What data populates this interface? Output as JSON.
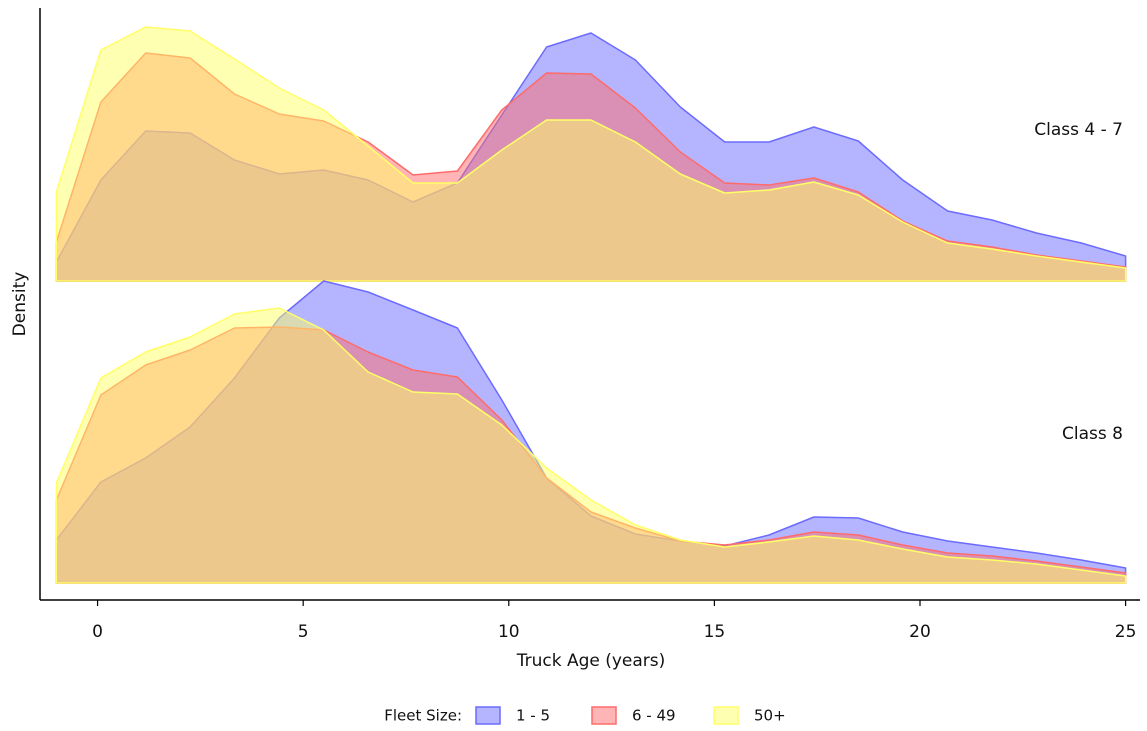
{
  "chart_data": {
    "type": "ridgeline",
    "xlabel": "Truck Age (years)",
    "ylabel": "Density",
    "legend_title": "Fleet Size:",
    "opacity": 0.5,
    "xlim": [
      -1.4,
      25.35
    ],
    "xticks": [
      0,
      5,
      10,
      15,
      20,
      25
    ],
    "ylim": [
      0,
      0.11
    ],
    "x": [
      -1,
      0.08,
      1.17,
      2.25,
      3.33,
      4.42,
      5.5,
      6.58,
      7.67,
      8.75,
      9.83,
      10.92,
      12,
      13.08,
      14.17,
      15.25,
      16.33,
      17.42,
      18.5,
      19.58,
      20.67,
      21.75,
      22.83,
      23.92,
      25
    ],
    "groups": [
      {
        "name": "Class 4 - 7",
        "series": [
          {
            "name": "1 - 5",
            "color": "#6b6bff",
            "values": [
              0.0076,
              0.0404,
              0.06,
              0.0592,
              0.0484,
              0.0428,
              0.0444,
              0.0404,
              0.0316,
              0.0392,
              0.0664,
              0.0936,
              0.0992,
              0.0884,
              0.0696,
              0.0556,
              0.0556,
              0.0616,
              0.056,
              0.0404,
              0.028,
              0.0244,
              0.0192,
              0.0152,
              0.01
            ]
          },
          {
            "name": "6 - 49",
            "color": "#ff6b6b",
            "values": [
              0.0156,
              0.0716,
              0.0912,
              0.0892,
              0.0748,
              0.0668,
              0.064,
              0.0556,
              0.0424,
              0.044,
              0.0684,
              0.0832,
              0.0828,
              0.0692,
              0.0516,
              0.0392,
              0.0384,
              0.0412,
              0.0356,
              0.024,
              0.016,
              0.0136,
              0.0104,
              0.008,
              0.0056
            ]
          },
          {
            "name": "50+",
            "color": "#ffff66",
            "values": [
              0.0356,
              0.0924,
              0.1016,
              0.1,
              0.0888,
              0.0772,
              0.0684,
              0.054,
              0.0392,
              0.0392,
              0.0524,
              0.0644,
              0.0644,
              0.0556,
              0.0428,
              0.0352,
              0.0364,
              0.0396,
              0.0344,
              0.0236,
              0.0152,
              0.0128,
              0.01,
              0.0076,
              0.0052
            ]
          }
        ]
      },
      {
        "name": "Class 8",
        "series": [
          {
            "name": "1 - 5",
            "color": "#6b6bff",
            "values": [
              0.0172,
              0.0404,
              0.05,
              0.0624,
              0.082,
              0.106,
              0.1208,
              0.1164,
              0.1092,
              0.102,
              0.0732,
              0.042,
              0.0268,
              0.0196,
              0.0168,
              0.0148,
              0.0192,
              0.0264,
              0.026,
              0.0204,
              0.0168,
              0.0144,
              0.012,
              0.0092,
              0.006
            ]
          },
          {
            "name": "6 - 49",
            "color": "#ff6b6b",
            "values": [
              0.0332,
              0.0752,
              0.0872,
              0.0932,
              0.102,
              0.1024,
              0.1012,
              0.0924,
              0.0852,
              0.0824,
              0.0652,
              0.042,
              0.0284,
              0.022,
              0.0168,
              0.0152,
              0.0172,
              0.0204,
              0.0192,
              0.0152,
              0.012,
              0.0108,
              0.0088,
              0.0064,
              0.004
            ]
          },
          {
            "name": "50+",
            "color": "#ffff66",
            "values": [
              0.04,
              0.082,
              0.0924,
              0.0984,
              0.1076,
              0.11,
              0.1012,
              0.0844,
              0.0764,
              0.0756,
              0.0632,
              0.046,
              0.0332,
              0.0232,
              0.0172,
              0.0144,
              0.0164,
              0.0188,
              0.0172,
              0.0136,
              0.0104,
              0.0092,
              0.0076,
              0.0052,
              0.0028
            ]
          }
        ]
      }
    ]
  }
}
